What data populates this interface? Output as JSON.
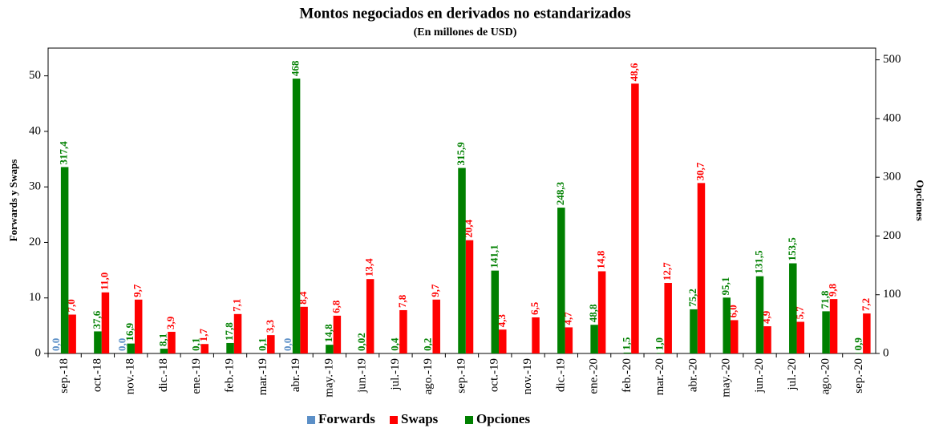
{
  "chart_data": {
    "type": "bar",
    "title": "Montos negociados en derivados no estandarizados",
    "subtitle": "(En millones de USD)",
    "ylabel": "Forwards y Swaps",
    "y2label": "Opciones",
    "categories": [
      "sep.-18",
      "oct.-18",
      "nov.-18",
      "dic.-18",
      "ene.-19",
      "feb.-19",
      "mar.-19",
      "abr.-19",
      "may.-19",
      "jun.-19",
      "jul.-19",
      "ago.-19",
      "sep.-19",
      "oct.-19",
      "nov.-19",
      "dic.-19",
      "ene.-20",
      "feb.-20",
      "mar.-20",
      "abr.-20",
      "may.-20",
      "jun.-20",
      "jul.-20",
      "ago.-20",
      "sep.-20"
    ],
    "series": [
      {
        "name": "Forwards",
        "color": "#5b8fc7",
        "values": [
          0,
          null,
          0,
          null,
          null,
          null,
          null,
          0,
          null,
          null,
          null,
          null,
          null,
          null,
          null,
          null,
          null,
          null,
          null,
          null,
          null,
          null,
          null,
          null,
          null
        ],
        "value_labels": [
          "0,0",
          null,
          "0,0",
          null,
          null,
          null,
          null,
          "0,0",
          null,
          null,
          null,
          null,
          null,
          null,
          null,
          null,
          null,
          null,
          null,
          null,
          null,
          null,
          null,
          null,
          null
        ]
      },
      {
        "name": "Swaps",
        "color": "#ff0000",
        "values": [
          7.0,
          11.0,
          9.7,
          3.9,
          1.7,
          7.1,
          3.3,
          8.4,
          6.8,
          13.4,
          7.8,
          9.7,
          20.4,
          4.3,
          6.5,
          4.7,
          14.8,
          48.6,
          12.7,
          30.7,
          6.0,
          4.9,
          5.7,
          9.8,
          7.2
        ],
        "value_labels": [
          "7,0",
          "11,0",
          "9,7",
          "3,9",
          "1,7",
          "7,1",
          "3,3",
          "8,4",
          "6,8",
          "13,4",
          "7,8",
          "9,7",
          "20,4",
          "4,3",
          "6,5",
          "4,7",
          "14,8",
          "48,6",
          "12,7",
          "30,7",
          "6,0",
          "4,9",
          "5,7",
          "9,8",
          "7,2"
        ]
      },
      {
        "name": "Opciones",
        "color": "#008000",
        "axis": "y2",
        "values": [
          317.4,
          37.6,
          16.9,
          8.1,
          0.1,
          17.8,
          0.1,
          468,
          14.8,
          0.02,
          0.4,
          0.2,
          315.9,
          141.1,
          null,
          248.3,
          48.8,
          1.5,
          1.0,
          75.2,
          95.1,
          131.5,
          153.5,
          71.8,
          0.9
        ],
        "value_labels": [
          "317,4",
          "37,6",
          "16,9",
          "8,1",
          "0,1",
          "17,8",
          "0,1",
          "468",
          "14,8",
          "0,02",
          "0,4",
          "0,2",
          "315,9",
          "141,1",
          null,
          "248,3",
          "48,8",
          "1,5",
          "1,0",
          "75,2",
          "95,1",
          "131,5",
          "153,5",
          "71,8",
          "0,9"
        ]
      }
    ],
    "ylim": [
      0,
      55
    ],
    "yticks": [
      0,
      10,
      20,
      30,
      40,
      50
    ],
    "y2lim": [
      0,
      520
    ],
    "y2ticks": [
      0,
      100,
      200,
      300,
      400,
      500
    ],
    "legend": "bottom"
  }
}
